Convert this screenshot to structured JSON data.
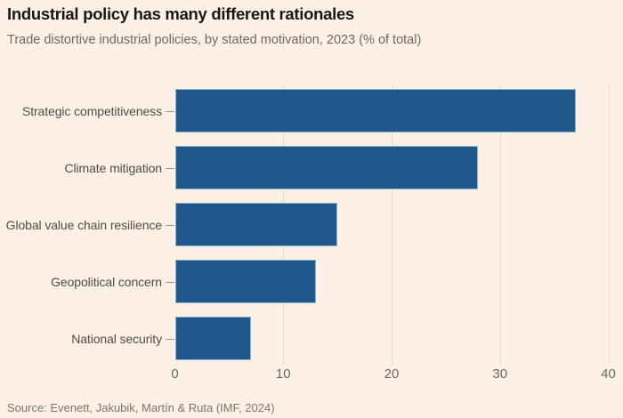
{
  "header": {
    "title": "Industrial policy has many different rationales",
    "subtitle": "Trade distortive industrial policies, by stated motivation, 2023 (% of total)"
  },
  "chart_data": {
    "type": "bar",
    "orientation": "horizontal",
    "title": "Industrial policy has many different rationales",
    "subtitle": "Trade distortive industrial policies, by stated motivation, 2023 (% of total)",
    "categories": [
      "Strategic competitiveness",
      "Climate mitigation",
      "Global value chain resilience",
      "Geopolitical concern",
      "National security"
    ],
    "values": [
      37,
      28,
      15,
      13,
      7
    ],
    "xlabel": "",
    "ylabel": "",
    "xlim": [
      0,
      40
    ],
    "xticks": [
      0,
      10,
      20,
      30,
      40
    ],
    "grid": "vertical-faint",
    "legend": "none",
    "bar_color": "#21588c",
    "background_color": "#fdf1e5",
    "gridline_color": "#e9d8c6"
  },
  "footer": {
    "source": "Source: Evenett, Jakubik, Martín & Ruta (IMF, 2024)"
  }
}
